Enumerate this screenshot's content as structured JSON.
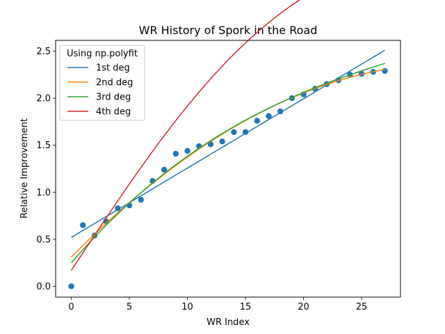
{
  "chart_data": {
    "type": "scatter",
    "title": "WR History of Spork in the Road",
    "xlabel": "WR Index",
    "ylabel": "Relative Improvement",
    "xlim": [
      -1.35,
      28.35
    ],
    "ylim": [
      -0.115,
      2.615
    ],
    "xticks": [
      0,
      5,
      10,
      15,
      20,
      25
    ],
    "yticks": [
      0.0,
      0.5,
      1.0,
      1.5,
      2.0,
      2.5
    ],
    "xtick_labels": [
      "0",
      "5",
      "10",
      "15",
      "20",
      "25"
    ],
    "ytick_labels": [
      "0.0",
      "0.5",
      "1.0",
      "1.5",
      "2.0",
      "2.5"
    ],
    "grid": false,
    "legend_title": "Using np.polyfit",
    "legend_position": "top-left",
    "points": {
      "x": [
        0,
        1,
        2,
        3,
        4,
        5,
        6,
        7,
        8,
        9,
        10,
        11,
        12,
        13,
        14,
        15,
        16,
        17,
        18,
        19,
        20,
        21,
        22,
        23,
        24,
        25,
        26,
        27
      ],
      "y": [
        0.0,
        0.65,
        0.54,
        0.69,
        0.83,
        0.86,
        0.92,
        1.12,
        1.24,
        1.41,
        1.44,
        1.49,
        1.51,
        1.54,
        1.64,
        1.64,
        1.76,
        1.81,
        1.86,
        2.0,
        2.04,
        2.1,
        2.15,
        2.19,
        2.25,
        2.26,
        2.28,
        2.29
      ],
      "color": "#1f77b4"
    },
    "series": [
      {
        "name": "1st deg",
        "color": "#1f77b4",
        "x_range": [
          0,
          27
        ],
        "coefficients": [
          0.0737,
          0.52
        ]
      },
      {
        "name": "2nd deg",
        "color": "#ff7f0e",
        "x_range": [
          0,
          27
        ],
        "coefficients": [
          -0.00191,
          0.1255,
          0.31
        ]
      },
      {
        "name": "3rd deg",
        "color": "#2ca02c",
        "x_range": [
          0,
          27
        ],
        "coefficients": [
          3.26e-05,
          -0.00325,
          0.1425,
          0.25
        ]
      },
      {
        "name": "4th deg",
        "color": "#d62728",
        "x_range": [
          0,
          27
        ],
        "coefficients": [
          3e-06,
          -0.000185,
          0.00049,
          0.1853,
          0.17
        ]
      }
    ]
  }
}
